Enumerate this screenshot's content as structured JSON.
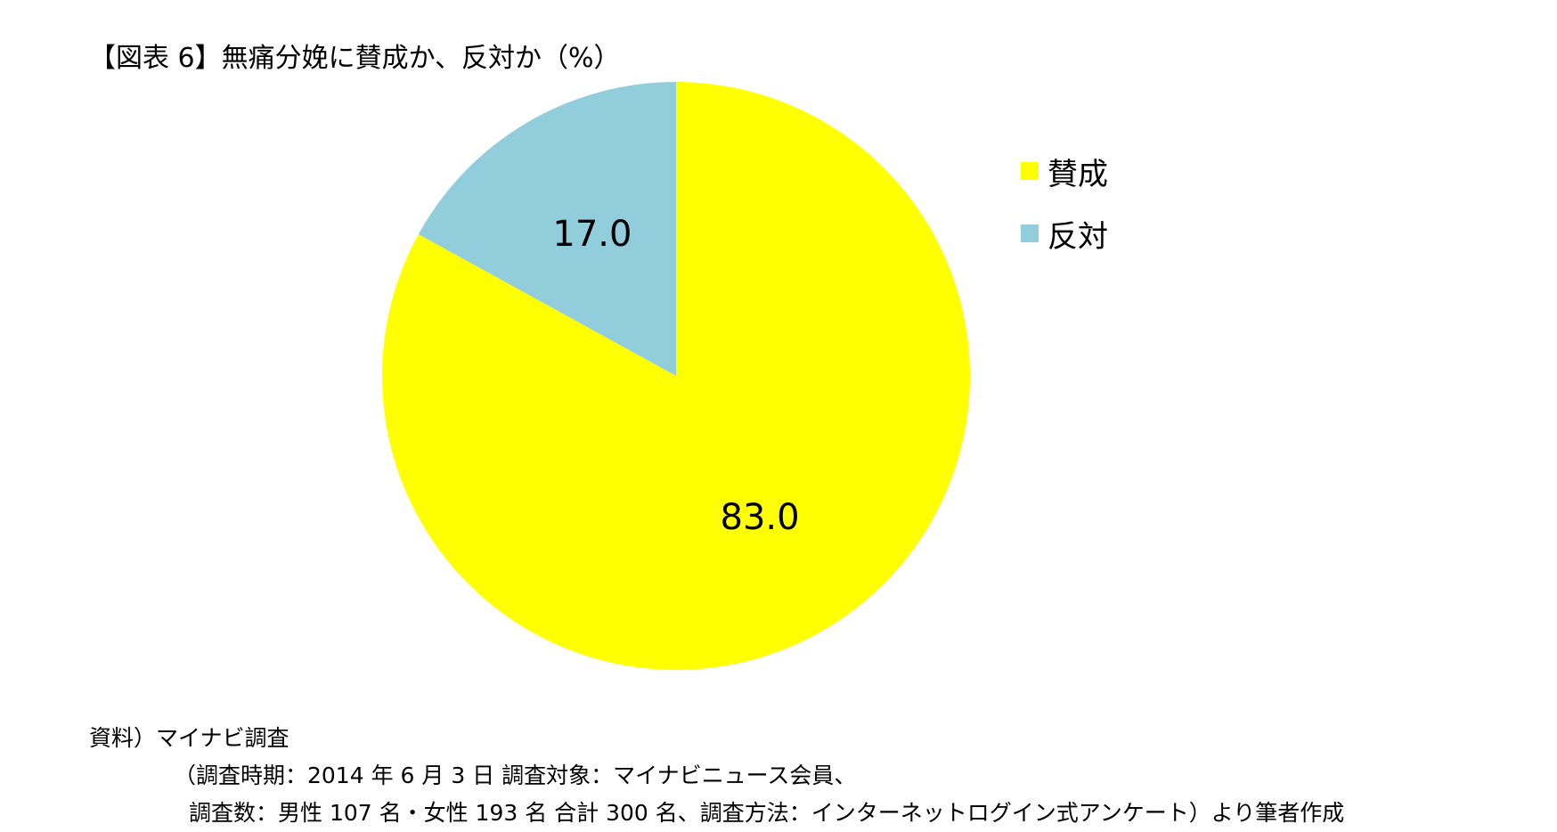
{
  "title": "【図表 6】無痛分娩に賛成か、反対か（%）",
  "chart_data": {
    "type": "pie",
    "title": "【図表 6】無痛分娩に賛成か、反対か（%）",
    "unit": "%",
    "start_angle_deg": 0,
    "direction": "clockwise",
    "legend_position": "right",
    "slices": [
      {
        "name": "賛成",
        "value": 83.0,
        "label": "83.0",
        "color": "#FFFF00"
      },
      {
        "name": "反対",
        "value": 17.0,
        "label": "17.0",
        "color": "#92CDDC"
      }
    ]
  },
  "source": {
    "line1": "資料）マイナビ調査",
    "line2": "（調査時期：2014 年 6 月 3 日 調査対象：マイナビニュース会員、",
    "line3": "調査数：男性 107 名・女性 193 名 合計 300 名、調査方法：インターネットログイン式アンケート）より筆者作成"
  }
}
